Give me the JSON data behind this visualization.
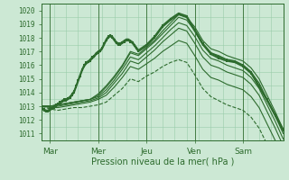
{
  "xlabel": "Pression niveau de la mer( hPa )",
  "ylim": [
    1010.5,
    1020.5
  ],
  "xlim": [
    0,
    120
  ],
  "yticks": [
    1011,
    1012,
    1013,
    1014,
    1015,
    1016,
    1017,
    1018,
    1019,
    1020
  ],
  "xtick_positions": [
    4,
    28,
    52,
    76,
    100
  ],
  "xtick_labels": [
    "Mar",
    "Mer",
    "Jeu",
    "Ven",
    "Sam"
  ],
  "vlines": [
    4,
    28,
    52,
    76,
    100
  ],
  "background_color": "#cce8d4",
  "grid_color": "#99ccaa",
  "line_color": "#2d6b2d",
  "figsize": [
    3.2,
    2.0
  ],
  "dpi": 100,
  "series": [
    {
      "x": [
        0,
        1,
        2,
        3,
        4,
        5,
        6,
        7,
        8,
        9,
        10,
        11,
        12,
        13,
        14,
        15,
        16,
        17,
        18,
        19,
        20,
        21,
        22,
        23,
        24,
        25,
        26,
        27,
        28,
        29,
        30,
        31,
        32,
        33,
        34,
        35,
        36,
        37,
        38,
        39,
        40,
        41,
        42,
        43,
        44,
        45,
        46,
        47,
        48,
        52,
        56,
        60,
        64,
        68,
        72,
        76,
        80,
        84,
        88,
        92,
        96,
        100,
        104,
        108,
        112,
        116,
        120
      ],
      "y": [
        1012.8,
        1012.7,
        1012.6,
        1012.6,
        1012.7,
        1012.8,
        1012.9,
        1013.0,
        1013.1,
        1013.2,
        1013.3,
        1013.4,
        1013.4,
        1013.5,
        1013.6,
        1013.8,
        1014.0,
        1014.4,
        1014.8,
        1015.2,
        1015.6,
        1015.9,
        1016.1,
        1016.2,
        1016.3,
        1016.5,
        1016.6,
        1016.8,
        1016.9,
        1017.0,
        1017.2,
        1017.5,
        1017.8,
        1018.0,
        1018.1,
        1018.0,
        1017.8,
        1017.6,
        1017.5,
        1017.5,
        1017.6,
        1017.7,
        1017.8,
        1017.8,
        1017.7,
        1017.6,
        1017.4,
        1017.2,
        1017.0,
        1017.4,
        1018.0,
        1018.8,
        1019.3,
        1019.7,
        1019.5,
        1018.5,
        1017.5,
        1016.8,
        1016.5,
        1016.3,
        1016.2,
        1015.9,
        1015.4,
        1014.4,
        1013.4,
        1012.3,
        1011.2
      ],
      "marker": true,
      "lw": 1.2,
      "dash": false,
      "alpha": 1.0
    },
    {
      "x": [
        0,
        4,
        8,
        12,
        16,
        20,
        24,
        28,
        32,
        36,
        40,
        44,
        48,
        52,
        56,
        60,
        64,
        68,
        72,
        76,
        80,
        84,
        88,
        92,
        96,
        100,
        104,
        108,
        112,
        116,
        120
      ],
      "y": [
        1013.0,
        1013.0,
        1013.1,
        1013.2,
        1013.3,
        1013.4,
        1013.5,
        1013.9,
        1014.5,
        1015.2,
        1016.0,
        1017.0,
        1016.8,
        1017.3,
        1017.8,
        1018.5,
        1019.1,
        1019.7,
        1019.5,
        1018.8,
        1017.8,
        1017.2,
        1017.0,
        1016.7,
        1016.5,
        1016.3,
        1015.8,
        1015.0,
        1013.8,
        1012.6,
        1011.3
      ],
      "marker": false,
      "lw": 0.8,
      "dash": false,
      "alpha": 1.0
    },
    {
      "x": [
        0,
        4,
        8,
        12,
        16,
        20,
        24,
        28,
        32,
        36,
        40,
        44,
        48,
        52,
        56,
        60,
        64,
        68,
        72,
        76,
        80,
        84,
        88,
        92,
        96,
        100,
        104,
        108,
        112,
        116,
        120
      ],
      "y": [
        1013.0,
        1013.0,
        1013.1,
        1013.2,
        1013.3,
        1013.4,
        1013.5,
        1013.8,
        1014.4,
        1015.1,
        1015.9,
        1016.9,
        1016.7,
        1017.2,
        1017.7,
        1018.3,
        1018.9,
        1019.5,
        1019.3,
        1018.5,
        1017.5,
        1016.9,
        1016.7,
        1016.4,
        1016.2,
        1016.0,
        1015.5,
        1014.7,
        1013.5,
        1012.3,
        1011.0
      ],
      "marker": false,
      "lw": 0.8,
      "dash": false,
      "alpha": 1.0
    },
    {
      "x": [
        0,
        4,
        8,
        12,
        16,
        20,
        24,
        28,
        32,
        36,
        40,
        44,
        48,
        52,
        56,
        60,
        64,
        68,
        72,
        76,
        80,
        84,
        88,
        92,
        96,
        100,
        104,
        108,
        112,
        116,
        120
      ],
      "y": [
        1013.0,
        1013.0,
        1013.1,
        1013.2,
        1013.3,
        1013.4,
        1013.5,
        1013.7,
        1014.2,
        1014.9,
        1015.7,
        1016.6,
        1016.4,
        1016.9,
        1017.4,
        1018.0,
        1018.6,
        1019.1,
        1018.9,
        1018.1,
        1017.1,
        1016.5,
        1016.3,
        1016.0,
        1015.8,
        1015.6,
        1015.1,
        1014.3,
        1013.1,
        1011.9,
        1010.6
      ],
      "marker": false,
      "lw": 0.8,
      "dash": false,
      "alpha": 1.0
    },
    {
      "x": [
        0,
        4,
        8,
        12,
        16,
        20,
        24,
        28,
        32,
        36,
        40,
        44,
        48,
        52,
        56,
        60,
        64,
        68,
        72,
        76,
        80,
        84,
        88,
        92,
        96,
        100,
        104,
        108,
        112,
        116,
        120
      ],
      "y": [
        1013.0,
        1013.0,
        1013.0,
        1013.1,
        1013.2,
        1013.3,
        1013.4,
        1013.6,
        1014.0,
        1014.7,
        1015.4,
        1016.3,
        1016.1,
        1016.6,
        1017.1,
        1017.7,
        1018.2,
        1018.7,
        1018.5,
        1017.6,
        1016.6,
        1016.0,
        1015.8,
        1015.5,
        1015.3,
        1015.1,
        1014.6,
        1013.8,
        1012.6,
        1011.4,
        1010.1
      ],
      "marker": false,
      "lw": 0.8,
      "dash": false,
      "alpha": 1.0
    },
    {
      "x": [
        0,
        4,
        8,
        12,
        16,
        20,
        24,
        28,
        32,
        36,
        40,
        44,
        48,
        52,
        56,
        60,
        64,
        68,
        72,
        76,
        80,
        84,
        88,
        92,
        96,
        100,
        104,
        108,
        112,
        116,
        120
      ],
      "y": [
        1013.0,
        1012.9,
        1012.9,
        1013.0,
        1013.1,
        1013.2,
        1013.3,
        1013.5,
        1013.8,
        1014.4,
        1015.1,
        1015.9,
        1015.7,
        1016.1,
        1016.5,
        1017.0,
        1017.4,
        1017.8,
        1017.6,
        1016.7,
        1015.7,
        1015.1,
        1014.9,
        1014.6,
        1014.4,
        1014.2,
        1013.7,
        1012.9,
        1011.7,
        1010.5,
        1009.2
      ],
      "marker": false,
      "lw": 0.8,
      "dash": false,
      "alpha": 1.0
    },
    {
      "x": [
        0,
        4,
        8,
        12,
        16,
        20,
        24,
        28,
        32,
        36,
        40,
        44,
        48,
        52,
        56,
        60,
        64,
        68,
        72,
        76,
        80,
        84,
        88,
        92,
        96,
        100,
        104,
        108,
        112,
        116,
        120
      ],
      "y": [
        1013.0,
        1012.8,
        1012.7,
        1012.8,
        1012.9,
        1012.9,
        1013.0,
        1013.1,
        1013.3,
        1013.8,
        1014.3,
        1015.0,
        1014.8,
        1015.2,
        1015.5,
        1015.9,
        1016.2,
        1016.4,
        1016.2,
        1015.3,
        1014.3,
        1013.7,
        1013.4,
        1013.1,
        1012.9,
        1012.7,
        1012.2,
        1011.4,
        1010.2,
        1009.0,
        1007.7
      ],
      "marker": false,
      "lw": 0.8,
      "dash": true,
      "alpha": 1.0
    },
    {
      "x": [
        0,
        1,
        2,
        3,
        4,
        5,
        6,
        7,
        8,
        9,
        10,
        11,
        12,
        13,
        14,
        15,
        16,
        17,
        18,
        19,
        20,
        21,
        22,
        23,
        24,
        25,
        26,
        27,
        28,
        29,
        30,
        31,
        32,
        33,
        34,
        35,
        36,
        37,
        38,
        39,
        40,
        41,
        42,
        43,
        44,
        45,
        46,
        47,
        48,
        52,
        56,
        60,
        64,
        68,
        72,
        76,
        80,
        84,
        88,
        92,
        96,
        100,
        104,
        108,
        112,
        116,
        120
      ],
      "y": [
        1012.9,
        1012.8,
        1012.7,
        1012.7,
        1012.8,
        1012.9,
        1013.0,
        1013.1,
        1013.2,
        1013.3,
        1013.4,
        1013.5,
        1013.5,
        1013.6,
        1013.7,
        1013.9,
        1014.1,
        1014.5,
        1014.9,
        1015.3,
        1015.7,
        1016.0,
        1016.2,
        1016.3,
        1016.4,
        1016.6,
        1016.7,
        1016.9,
        1017.0,
        1017.1,
        1017.3,
        1017.6,
        1017.9,
        1018.1,
        1018.2,
        1018.1,
        1017.9,
        1017.7,
        1017.6,
        1017.6,
        1017.7,
        1017.8,
        1017.9,
        1017.9,
        1017.8,
        1017.7,
        1017.5,
        1017.3,
        1017.1,
        1017.5,
        1018.1,
        1018.9,
        1019.4,
        1019.8,
        1019.6,
        1018.6,
        1017.6,
        1016.9,
        1016.6,
        1016.4,
        1016.3,
        1016.0,
        1015.5,
        1014.5,
        1013.5,
        1012.4,
        1011.3
      ],
      "marker": true,
      "lw": 1.2,
      "dash": false,
      "alpha": 1.0
    }
  ]
}
